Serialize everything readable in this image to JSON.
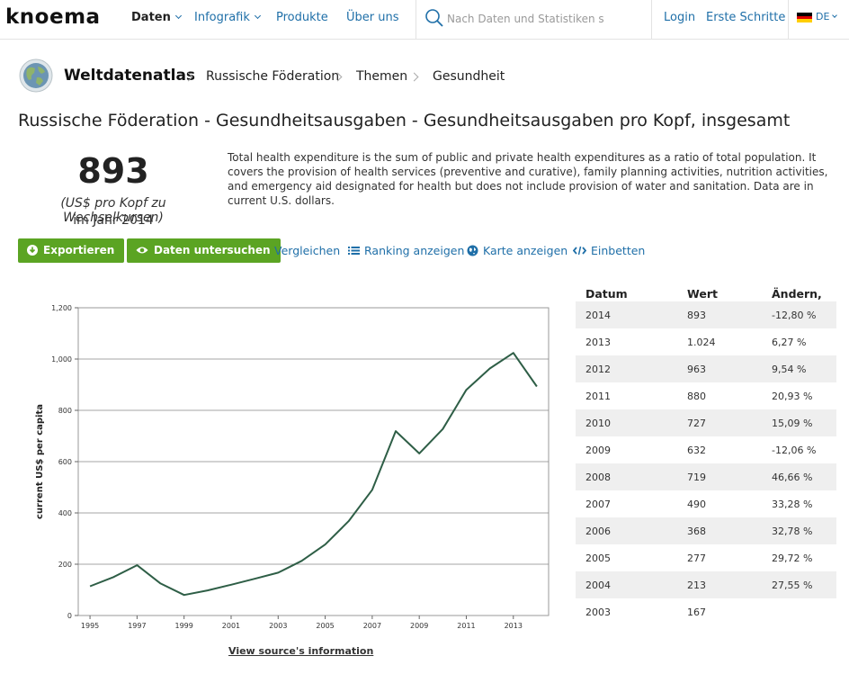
{
  "nav": {
    "logo": "knoema",
    "items": [
      {
        "label": "Daten",
        "active": true,
        "dropdown": true
      },
      {
        "label": "Infografik",
        "active": false,
        "dropdown": true
      },
      {
        "label": "Produkte",
        "active": false,
        "dropdown": false
      },
      {
        "label": "Über uns",
        "active": false,
        "dropdown": false
      }
    ],
    "search_placeholder": "Nach Daten und Statistiken su",
    "login": "Login",
    "first_steps": "Erste Schritte",
    "language": "DE"
  },
  "breadcrumb": {
    "brand": "Weltdatenatlas",
    "items": [
      "Russische Föderation",
      "Themen",
      "Gesundheit"
    ]
  },
  "title": "Russische Föderation - Gesundheitsausgaben - Gesundheitsausgaben pro Kopf, insgesamt",
  "headline": {
    "value": "893",
    "unit": "(US$ pro Kopf zu Wechselkursen)",
    "year": "im Jahr 2014"
  },
  "description": "Total health expenditure is the sum of public and private health expenditures as a ratio of total population. It covers the provision of health services (preventive and curative), family planning activities, nutrition activities, and emergency aid designated for health but does not include provision of water and sanitation. Data are in current U.S. dollars.",
  "actions": {
    "export": "Exportieren",
    "explore": "Daten untersuchen",
    "compare": "Vergleichen",
    "ranking": "Ranking anzeigen",
    "map": "Karte anzeigen",
    "embed": "Einbetten"
  },
  "chart_data": {
    "type": "line",
    "title": "",
    "xlabel": "",
    "ylabel": "current US$ per capita",
    "x": [
      1995,
      1996,
      1997,
      1998,
      1999,
      2000,
      2001,
      2002,
      2003,
      2004,
      2005,
      2006,
      2007,
      2008,
      2009,
      2010,
      2011,
      2012,
      2013,
      2014
    ],
    "series": [
      {
        "values": [
          114,
          150,
          196,
          125,
          80,
          98,
          120,
          143,
          167,
          213,
          277,
          368,
          490,
          719,
          632,
          727,
          880,
          963,
          1024,
          893
        ]
      }
    ],
    "ylim": [
      0,
      1200
    ],
    "xlim": [
      1994.5,
      2014.5
    ],
    "yticks": [
      "0",
      "200",
      "400",
      "600",
      "800",
      "1,000",
      "1,200"
    ],
    "xticks": [
      "1995",
      "1997",
      "1999",
      "2001",
      "2003",
      "2005",
      "2007",
      "2009",
      "2011",
      "2013"
    ],
    "grid": true,
    "line_color": "#2e5e46"
  },
  "source_link": "View source's information",
  "table": {
    "headers": [
      "Datum",
      "Wert",
      "Ändern, %"
    ],
    "rows": [
      [
        "2014",
        "893",
        "-12,80 %"
      ],
      [
        "2013",
        "1.024",
        "6,27 %"
      ],
      [
        "2012",
        "963",
        "9,54 %"
      ],
      [
        "2011",
        "880",
        "20,93 %"
      ],
      [
        "2010",
        "727",
        "15,09 %"
      ],
      [
        "2009",
        "632",
        "-12,06 %"
      ],
      [
        "2008",
        "719",
        "46,66 %"
      ],
      [
        "2007",
        "490",
        "33,28 %"
      ],
      [
        "2006",
        "368",
        "32,78 %"
      ],
      [
        "2005",
        "277",
        "29,72 %"
      ],
      [
        "2004",
        "213",
        "27,55 %"
      ],
      [
        "2003",
        "167",
        ""
      ]
    ]
  },
  "colors": {
    "accent_green": "#5ba423",
    "link_blue": "#1f6fa8"
  }
}
